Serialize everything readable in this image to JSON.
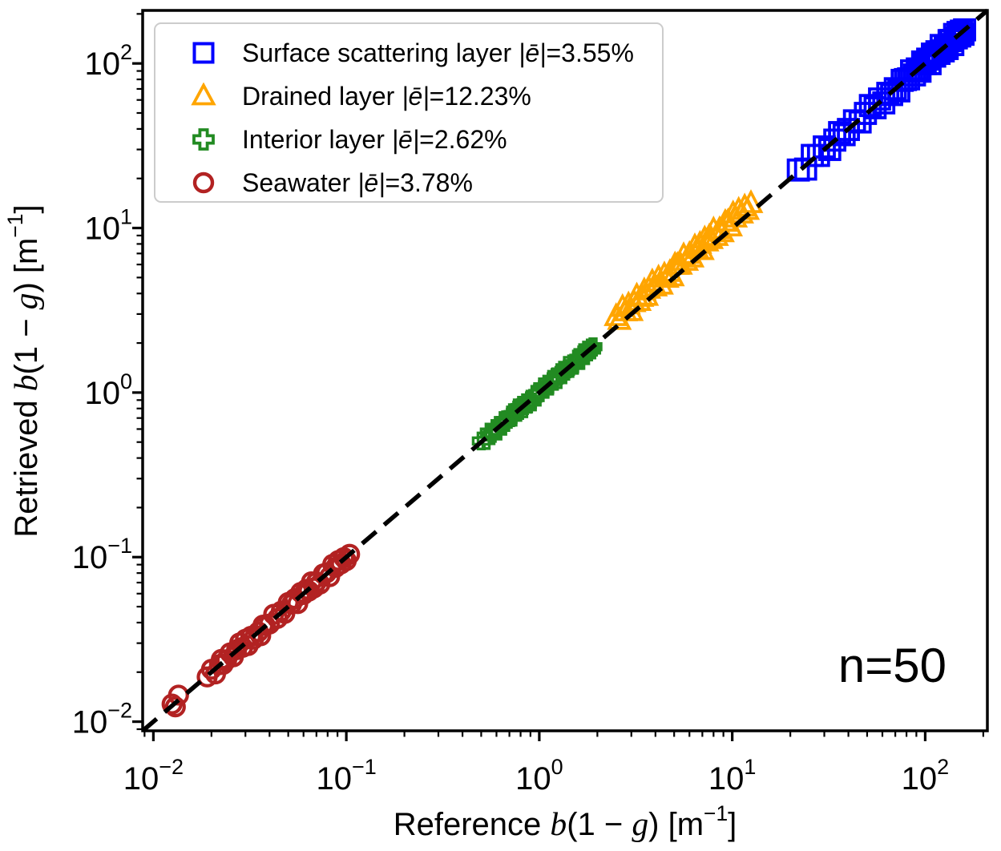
{
  "figure": {
    "background": "#ffffff",
    "annotation": {
      "text": "n=50"
    },
    "x_axis": {
      "label": {
        "prefix": "Reference ",
        "var_b": "b",
        "mid": "(1 − ",
        "var_g": "g",
        "close": ") [m",
        "exp": "−1",
        "end": "]"
      },
      "tick_labels": [
        "10⁻²",
        "10⁻¹",
        "10⁰",
        "10¹",
        "10²"
      ]
    },
    "y_axis": {
      "label": {
        "prefix": "Retrieved ",
        "var_b": "b",
        "mid": "(1 − ",
        "var_g": "g",
        "close": ") [m",
        "exp": "−1",
        "end": "]"
      },
      "tick_labels": [
        "10⁻²",
        "10⁻¹",
        "10⁰",
        "10¹",
        "10²"
      ]
    }
  },
  "legend": {
    "entries": [
      {
        "marker": "square-icon",
        "color": "#0000ff",
        "name": "Surface scattering layer ",
        "e_sym": "|ē|",
        "value": "=3.55%"
      },
      {
        "marker": "triangle-icon",
        "color": "#ffa500",
        "name": "Drained layer ",
        "e_sym": "|ē|",
        "value": "=12.23%"
      },
      {
        "marker": "plus-icon",
        "color": "#228b22",
        "name": "Interior layer ",
        "e_sym": "|ē|",
        "value": "=2.62%"
      },
      {
        "marker": "circle-icon",
        "color": "#b22222",
        "name": "Seawater ",
        "e_sym": "|ē|",
        "value": "=3.78%"
      }
    ]
  },
  "chart_data": {
    "type": "scatter",
    "xscale": "log",
    "yscale": "log",
    "xlim": [
      0.0088,
      210
    ],
    "ylim": [
      0.0088,
      210
    ],
    "xlabel": "Reference b(1 − g) [m⁻¹]",
    "ylabel": "Retrieved b(1 − g) [m⁻¹]",
    "x_tick_exponents": [
      -2,
      -1,
      0,
      1,
      2
    ],
    "y_tick_exponents": [
      -2,
      -1,
      0,
      1,
      2
    ],
    "grid": false,
    "legend_position": "upper left",
    "annotation": "n=50",
    "n_per_series": 50,
    "identity_line": {
      "type": "y=x",
      "style": "dashed",
      "color": "#000000"
    },
    "series": [
      {
        "name": "Surface scattering layer",
        "mean_abs_error_pct": 3.55,
        "marker": "square",
        "color": "#0000ff",
        "points": [
          [
            22,
            22.5
          ],
          [
            24,
            22.8
          ],
          [
            26,
            27.6
          ],
          [
            28,
            27.6
          ],
          [
            30,
            31.1
          ],
          [
            32,
            30.0
          ],
          [
            34,
            34.2
          ],
          [
            36,
            38.0
          ],
          [
            38,
            36.9
          ],
          [
            40,
            39.7
          ],
          [
            43,
            44.8
          ],
          [
            46,
            44.1
          ],
          [
            49,
            49.7
          ],
          [
            52,
            55.5
          ],
          [
            55,
            53.8
          ],
          [
            58,
            60.8
          ],
          [
            61,
            57.6
          ],
          [
            64,
            65.8
          ],
          [
            67,
            64.7
          ],
          [
            70,
            70.2
          ],
          [
            73,
            68.1
          ],
          [
            76,
            78.9
          ],
          [
            79,
            79.8
          ],
          [
            82,
            80.6
          ],
          [
            85,
            90.1
          ],
          [
            88,
            85.2
          ],
          [
            91,
            92.6
          ],
          [
            94,
            89.7
          ],
          [
            97,
            102.1
          ],
          [
            100,
            99.7
          ],
          [
            103,
            106.2
          ],
          [
            106,
            99.7
          ],
          [
            109,
            114.0
          ],
          [
            112,
            110.8
          ],
          [
            115,
            117.8
          ],
          [
            118,
            115.1
          ],
          [
            121,
            128.6
          ],
          [
            124,
            119.2
          ],
          [
            127,
            127.9
          ],
          [
            130,
            123.2
          ],
          [
            133,
            137.7
          ],
          [
            136,
            137.9
          ],
          [
            139,
            130.2
          ],
          [
            142,
            150.0
          ],
          [
            145,
            143.0
          ],
          [
            148,
            154.2
          ],
          [
            151,
            146.8
          ],
          [
            154,
            157.2
          ],
          [
            157,
            150.4
          ],
          [
            160,
            160.0
          ]
        ]
      },
      {
        "name": "Drained layer",
        "mean_abs_error_pct": 12.23,
        "marker": "triangle",
        "color": "#ffa500",
        "points": [
          [
            2.5,
            2.88
          ],
          [
            2.6,
            2.73
          ],
          [
            2.7,
            3.27
          ],
          [
            2.8,
            3.08
          ],
          [
            2.9,
            3.39
          ],
          [
            3.0,
            3.09
          ],
          [
            3.1,
            3.5
          ],
          [
            3.2,
            3.84
          ],
          [
            3.3,
            3.56
          ],
          [
            3.4,
            3.77
          ],
          [
            3.5,
            4.13
          ],
          [
            3.6,
            3.82
          ],
          [
            3.7,
            4.22
          ],
          [
            3.85,
            4.68
          ],
          [
            4.0,
            4.36
          ],
          [
            4.15,
            4.94
          ],
          [
            4.3,
            4.47
          ],
          [
            4.45,
            5.16
          ],
          [
            4.6,
            4.92
          ],
          [
            4.75,
            5.34
          ],
          [
            4.9,
            5.02
          ],
          [
            5.05,
            5.93
          ],
          [
            5.2,
            5.9
          ],
          [
            5.4,
            5.91
          ],
          [
            5.6,
            6.75
          ],
          [
            5.8,
            6.24
          ],
          [
            6.0,
            6.87
          ],
          [
            6.2,
            6.54
          ],
          [
            6.4,
            7.65
          ],
          [
            6.6,
            7.36
          ],
          [
            6.8,
            7.92
          ],
          [
            7.0,
            7.25
          ],
          [
            7.2,
            8.53
          ],
          [
            7.4,
            8.18
          ],
          [
            7.6,
            8.78
          ],
          [
            7.8,
            8.46
          ],
          [
            8.0,
            9.68
          ],
          [
            8.3,
            8.84
          ],
          [
            8.6,
            9.72
          ],
          [
            8.9,
            9.3
          ],
          [
            9.2,
            10.76
          ],
          [
            9.5,
            10.83
          ],
          [
            9.8,
            10.09
          ],
          [
            10.1,
            12.12
          ],
          [
            10.4,
            11.44
          ],
          [
            10.8,
            12.74
          ],
          [
            11.2,
            12.1
          ],
          [
            11.6,
            13.34
          ],
          [
            12.0,
            12.72
          ],
          [
            12.5,
            14.0
          ]
        ]
      },
      {
        "name": "Interior layer",
        "mean_abs_error_pct": 2.62,
        "marker": "plus",
        "color": "#228b22",
        "points": [
          [
            0.5,
            0.508
          ],
          [
            0.53,
            0.511
          ],
          [
            0.55,
            0.575
          ],
          [
            0.57,
            0.564
          ],
          [
            0.59,
            0.605
          ],
          [
            0.61,
            0.583
          ],
          [
            0.63,
            0.633
          ],
          [
            0.65,
            0.676
          ],
          [
            0.67,
            0.657
          ],
          [
            0.69,
            0.687
          ],
          [
            0.71,
            0.731
          ],
          [
            0.73,
            0.708
          ],
          [
            0.75,
            0.758
          ],
          [
            0.77,
            0.807
          ],
          [
            0.79,
            0.778
          ],
          [
            0.81,
            0.838
          ],
          [
            0.83,
            0.797
          ],
          [
            0.85,
            0.867
          ],
          [
            0.87,
            0.848
          ],
          [
            0.89,
            0.892
          ],
          [
            0.92,
            0.876
          ],
          [
            0.95,
            0.976
          ],
          [
            0.98,
            0.987
          ],
          [
            1.01,
            0.997
          ],
          [
            1.04,
            1.084
          ],
          [
            1.07,
            1.046
          ],
          [
            1.1,
            1.114
          ],
          [
            1.13,
            1.093
          ],
          [
            1.16,
            1.204
          ],
          [
            1.19,
            1.187
          ],
          [
            1.22,
            1.247
          ],
          [
            1.25,
            1.197
          ],
          [
            1.28,
            1.322
          ],
          [
            1.31,
            1.3
          ],
          [
            1.34,
            1.363
          ],
          [
            1.37,
            1.346
          ],
          [
            1.4,
            1.463
          ],
          [
            1.44,
            1.4
          ],
          [
            1.48,
            1.487
          ],
          [
            1.52,
            1.463
          ],
          [
            1.56,
            1.599
          ],
          [
            1.6,
            1.616
          ],
          [
            1.64,
            1.566
          ],
          [
            1.68,
            1.747
          ],
          [
            1.72,
            1.703
          ],
          [
            1.76,
            1.813
          ],
          [
            1.8,
            1.764
          ],
          [
            1.84,
            1.868
          ],
          [
            1.87,
            1.814
          ],
          [
            1.9,
            1.9
          ]
        ]
      },
      {
        "name": "Seawater",
        "mean_abs_error_pct": 3.78,
        "marker": "circle",
        "color": "#b22222",
        "points": [
          [
            0.0125,
            0.0128
          ],
          [
            0.013,
            0.0123
          ],
          [
            0.0135,
            0.0145
          ],
          [
            0.019,
            0.0187
          ],
          [
            0.02,
            0.0208
          ],
          [
            0.021,
            0.0195
          ],
          [
            0.022,
            0.0222
          ],
          [
            0.0225,
            0.0239
          ],
          [
            0.023,
            0.0223
          ],
          [
            0.024,
            0.0238
          ],
          [
            0.025,
            0.0262
          ],
          [
            0.026,
            0.0248
          ],
          [
            0.027,
            0.0274
          ],
          [
            0.028,
            0.0301
          ],
          [
            0.029,
            0.0283
          ],
          [
            0.03,
            0.0317
          ],
          [
            0.031,
            0.029
          ],
          [
            0.032,
            0.033
          ],
          [
            0.033,
            0.0317
          ],
          [
            0.035,
            0.0351
          ],
          [
            0.036,
            0.0333
          ],
          [
            0.037,
            0.0386
          ],
          [
            0.038,
            0.0385
          ],
          [
            0.04,
            0.0392
          ],
          [
            0.042,
            0.0449
          ],
          [
            0.044,
            0.0424
          ],
          [
            0.046,
            0.0469
          ],
          [
            0.048,
            0.0455
          ],
          [
            0.05,
            0.053
          ],
          [
            0.052,
            0.0518
          ],
          [
            0.054,
            0.0559
          ],
          [
            0.056,
            0.0522
          ],
          [
            0.058,
            0.061
          ],
          [
            0.06,
            0.0593
          ],
          [
            0.062,
            0.0637
          ],
          [
            0.064,
            0.0622
          ],
          [
            0.066,
            0.0708
          ],
          [
            0.068,
            0.065
          ],
          [
            0.07,
            0.0706
          ],
          [
            0.073,
            0.0686
          ],
          [
            0.076,
            0.079
          ],
          [
            0.079,
            0.0803
          ],
          [
            0.082,
            0.0761
          ],
          [
            0.085,
            0.0904
          ],
          [
            0.088,
            0.0866
          ],
          [
            0.091,
            0.0954
          ],
          [
            0.094,
            0.091
          ],
          [
            0.097,
            0.0993
          ],
          [
            0.1,
            0.0952
          ],
          [
            0.104,
            0.104
          ]
        ]
      }
    ]
  }
}
